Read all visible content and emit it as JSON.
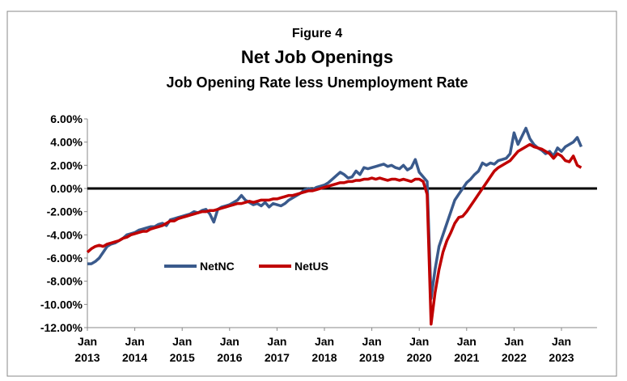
{
  "chart_data": {
    "type": "line",
    "title": "Figure 4",
    "subtitle": "Net Job Openings",
    "subtitle2": "Job Opening Rate less Unemployment Rate",
    "x": [
      "2013-01",
      "2013-02",
      "2013-03",
      "2013-04",
      "2013-05",
      "2013-06",
      "2013-07",
      "2013-08",
      "2013-09",
      "2013-10",
      "2013-11",
      "2013-12",
      "2014-01",
      "2014-02",
      "2014-03",
      "2014-04",
      "2014-05",
      "2014-06",
      "2014-07",
      "2014-08",
      "2014-09",
      "2014-10",
      "2014-11",
      "2014-12",
      "2015-01",
      "2015-02",
      "2015-03",
      "2015-04",
      "2015-05",
      "2015-06",
      "2015-07",
      "2015-08",
      "2015-09",
      "2015-10",
      "2015-11",
      "2015-12",
      "2016-01",
      "2016-02",
      "2016-03",
      "2016-04",
      "2016-05",
      "2016-06",
      "2016-07",
      "2016-08",
      "2016-09",
      "2016-10",
      "2016-11",
      "2016-12",
      "2017-01",
      "2017-02",
      "2017-03",
      "2017-04",
      "2017-05",
      "2017-06",
      "2017-07",
      "2017-08",
      "2017-09",
      "2017-10",
      "2017-11",
      "2017-12",
      "2018-01",
      "2018-02",
      "2018-03",
      "2018-04",
      "2018-05",
      "2018-06",
      "2018-07",
      "2018-08",
      "2018-09",
      "2018-10",
      "2018-11",
      "2018-12",
      "2019-01",
      "2019-02",
      "2019-03",
      "2019-04",
      "2019-05",
      "2019-06",
      "2019-07",
      "2019-08",
      "2019-09",
      "2019-10",
      "2019-11",
      "2019-12",
      "2020-01",
      "2020-02",
      "2020-03",
      "2020-04",
      "2020-05",
      "2020-06",
      "2020-07",
      "2020-08",
      "2020-09",
      "2020-10",
      "2020-11",
      "2020-12",
      "2021-01",
      "2021-02",
      "2021-03",
      "2021-04",
      "2021-05",
      "2021-06",
      "2021-07",
      "2021-08",
      "2021-09",
      "2021-10",
      "2021-11",
      "2021-12",
      "2022-01",
      "2022-02",
      "2022-03",
      "2022-04",
      "2022-05",
      "2022-06",
      "2022-07",
      "2022-08",
      "2022-09",
      "2022-10",
      "2022-11",
      "2022-12",
      "2023-01",
      "2023-02",
      "2023-03",
      "2023-04",
      "2023-05",
      "2023-06"
    ],
    "series": [
      {
        "name": "NetNC",
        "color": "#3a5a8c",
        "values": [
          -6.5,
          -6.5,
          -6.3,
          -6.0,
          -5.5,
          -5.0,
          -4.8,
          -4.7,
          -4.5,
          -4.3,
          -4.0,
          -3.9,
          -3.8,
          -3.6,
          -3.5,
          -3.4,
          -3.3,
          -3.3,
          -3.1,
          -3.0,
          -3.2,
          -2.7,
          -2.6,
          -2.5,
          -2.4,
          -2.3,
          -2.2,
          -2.0,
          -2.1,
          -1.9,
          -1.8,
          -2.2,
          -2.9,
          -1.8,
          -1.6,
          -1.5,
          -1.4,
          -1.2,
          -1.0,
          -0.6,
          -1.0,
          -1.2,
          -1.4,
          -1.3,
          -1.5,
          -1.2,
          -1.6,
          -1.3,
          -1.4,
          -1.5,
          -1.3,
          -1.0,
          -0.8,
          -0.6,
          -0.4,
          -0.1,
          0.0,
          -0.1,
          0.1,
          0.2,
          0.3,
          0.5,
          0.8,
          1.1,
          1.4,
          1.2,
          0.9,
          1.0,
          1.5,
          1.2,
          1.8,
          1.7,
          1.8,
          1.9,
          2.0,
          2.1,
          1.9,
          2.0,
          1.8,
          1.7,
          2.0,
          1.6,
          1.8,
          2.5,
          1.4,
          1.0,
          0.6,
          -9.5,
          -7.0,
          -5.0,
          -4.0,
          -3.0,
          -2.0,
          -1.0,
          -0.5,
          0.0,
          0.5,
          0.8,
          1.2,
          1.5,
          2.2,
          2.0,
          2.2,
          2.1,
          2.4,
          2.5,
          2.6,
          3.0,
          4.8,
          3.8,
          4.5,
          5.2,
          4.3,
          3.8,
          3.5,
          3.3,
          3.0,
          3.2,
          2.8,
          3.5,
          3.2,
          3.6,
          3.8,
          4.0,
          4.4,
          3.6
        ]
      },
      {
        "name": "NetUS",
        "color": "#c00000",
        "values": [
          -5.5,
          -5.2,
          -5.0,
          -4.9,
          -5.0,
          -4.8,
          -4.7,
          -4.6,
          -4.5,
          -4.3,
          -4.2,
          -4.0,
          -3.9,
          -3.8,
          -3.7,
          -3.7,
          -3.5,
          -3.4,
          -3.3,
          -3.2,
          -3.0,
          -2.8,
          -2.8,
          -2.6,
          -2.5,
          -2.4,
          -2.3,
          -2.2,
          -2.1,
          -2.0,
          -2.0,
          -1.9,
          -1.9,
          -1.8,
          -1.7,
          -1.6,
          -1.5,
          -1.4,
          -1.3,
          -1.3,
          -1.2,
          -1.1,
          -1.2,
          -1.1,
          -1.0,
          -1.0,
          -1.0,
          -0.9,
          -0.9,
          -0.8,
          -0.7,
          -0.6,
          -0.6,
          -0.5,
          -0.4,
          -0.3,
          -0.2,
          -0.2,
          -0.1,
          0.0,
          0.1,
          0.2,
          0.3,
          0.4,
          0.5,
          0.5,
          0.6,
          0.6,
          0.7,
          0.7,
          0.8,
          0.8,
          0.9,
          0.8,
          0.9,
          0.8,
          0.7,
          0.8,
          0.8,
          0.7,
          0.8,
          0.7,
          0.6,
          0.8,
          0.8,
          0.6,
          -0.5,
          -11.7,
          -9.0,
          -7.0,
          -5.5,
          -4.5,
          -3.8,
          -3.0,
          -2.5,
          -2.4,
          -2.0,
          -1.5,
          -1.0,
          -0.5,
          0.0,
          0.5,
          1.0,
          1.5,
          1.8,
          2.0,
          2.2,
          2.4,
          2.8,
          3.2,
          3.4,
          3.6,
          3.8,
          3.6,
          3.5,
          3.4,
          3.2,
          3.0,
          2.6,
          3.0,
          2.8,
          2.4,
          2.3,
          2.8,
          2.0,
          1.8
        ]
      }
    ],
    "xlim": [
      "2013-01",
      "2023-10"
    ],
    "xticks": [
      {
        "value": "2013-01",
        "label": "Jan 2013"
      },
      {
        "value": "2014-01",
        "label": "Jan 2014"
      },
      {
        "value": "2015-01",
        "label": "Jan 2015"
      },
      {
        "value": "2016-01",
        "label": "Jan 2016"
      },
      {
        "value": "2017-01",
        "label": "Jan 2017"
      },
      {
        "value": "2018-01",
        "label": "Jan 2018"
      },
      {
        "value": "2019-01",
        "label": "Jan 2019"
      },
      {
        "value": "2020-01",
        "label": "Jan 2020"
      },
      {
        "value": "2021-01",
        "label": "Jan 2021"
      },
      {
        "value": "2022-01",
        "label": "Jan 2022"
      },
      {
        "value": "2023-01",
        "label": "Jan 2023"
      }
    ],
    "ylim": [
      -12,
      6
    ],
    "yticks": [
      {
        "value": 6,
        "label": "6.00%"
      },
      {
        "value": 4,
        "label": "4.00%"
      },
      {
        "value": 2,
        "label": "2.00%"
      },
      {
        "value": 0,
        "label": "0.00%"
      },
      {
        "value": -2,
        "label": "-2.00%"
      },
      {
        "value": -4,
        "label": "-4.00%"
      },
      {
        "value": -6,
        "label": "-6.00%"
      },
      {
        "value": -8,
        "label": "-8.00%"
      },
      {
        "value": -10,
        "label": "-10.00%"
      },
      {
        "value": -12,
        "label": "-12.00%"
      }
    ],
    "grid": false
  }
}
